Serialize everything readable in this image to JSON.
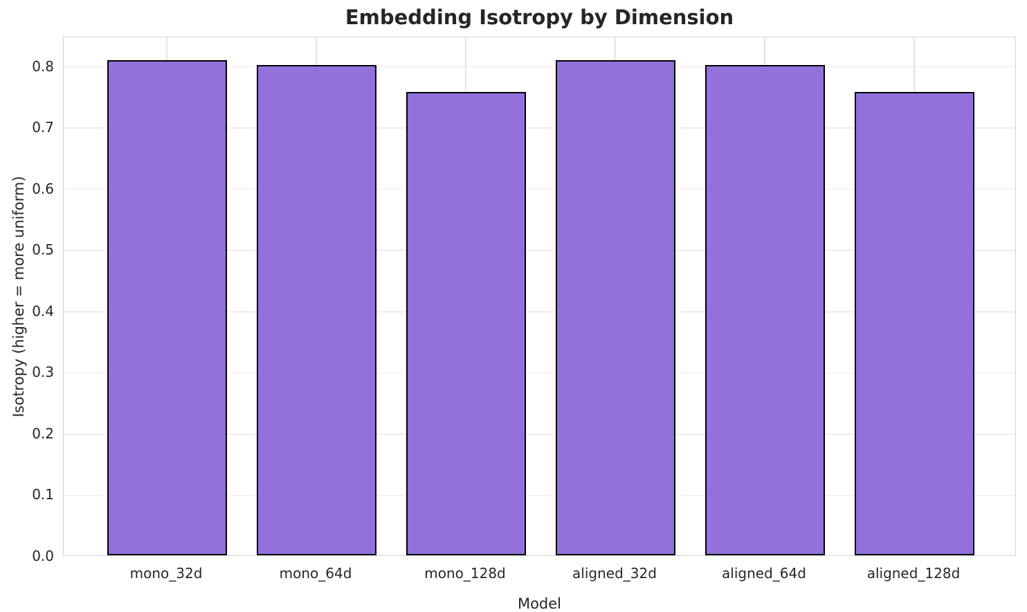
{
  "chart_data": {
    "type": "bar",
    "title": "Embedding Isotropy by Dimension",
    "xlabel": "Model",
    "ylabel": "Isotropy (higher = more uniform)",
    "categories": [
      "mono_32d",
      "mono_64d",
      "mono_128d",
      "aligned_32d",
      "aligned_64d",
      "aligned_128d"
    ],
    "values": [
      0.809,
      0.801,
      0.756,
      0.809,
      0.801,
      0.756
    ],
    "ytick_labels": [
      "0.0",
      "0.1",
      "0.2",
      "0.3",
      "0.4",
      "0.5",
      "0.6",
      "0.7",
      "0.8"
    ],
    "ytick_values": [
      0.0,
      0.1,
      0.2,
      0.3,
      0.4,
      0.5,
      0.6,
      0.7,
      0.8
    ],
    "ylim": [
      0,
      0.848
    ],
    "grid": "both",
    "legend": "none",
    "colors": {
      "bar_fill": "#9370DB",
      "bar_edge": "#000000",
      "grid_h": "#ececec",
      "grid_v": "#e4e4e4",
      "axes_border": "#d2d2d2",
      "text": "#262626",
      "background": "#ffffff"
    }
  }
}
